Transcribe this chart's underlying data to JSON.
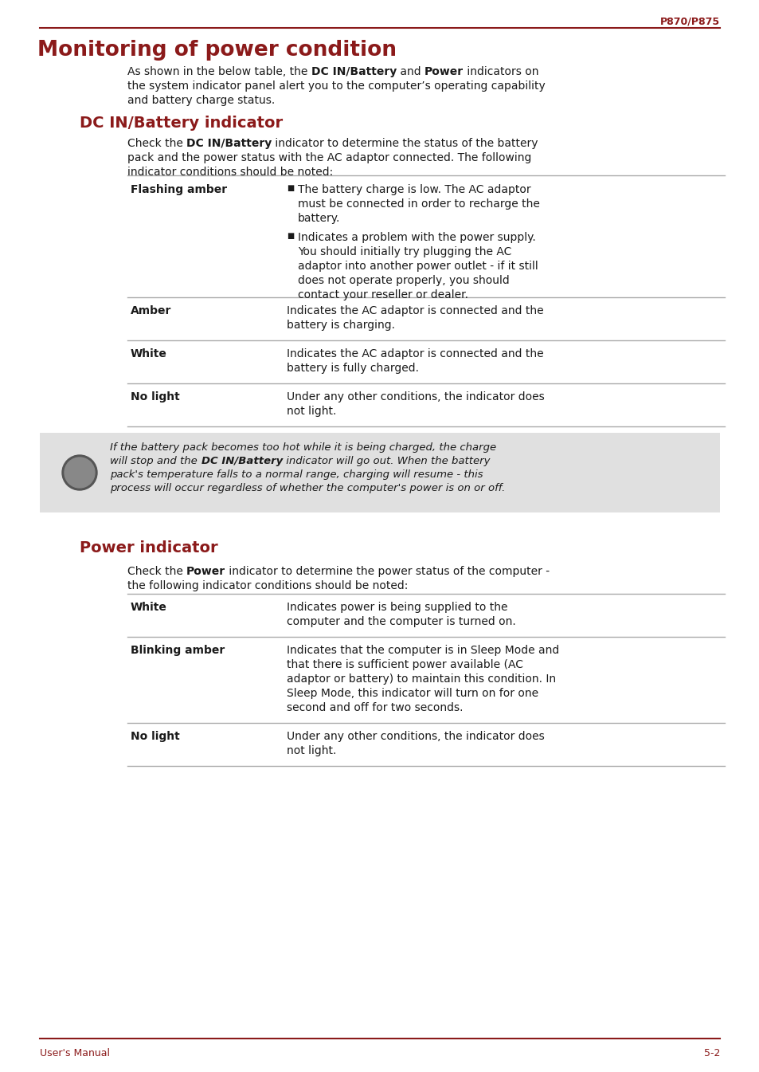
{
  "page_label": "P870/P875",
  "footer_left": "User's Manual",
  "footer_right": "5-2",
  "accent_color": "#8B1A1A",
  "text_color": "#1a1a1a",
  "bg_color": "#ffffff",
  "main_title": "Monitoring of power condition",
  "section1_title": "DC IN/Battery indicator",
  "section2_title": "Power indicator",
  "line_color": "#aaaaaa",
  "note_bg": "#e0e0e0",
  "icon_bg": "#999999"
}
